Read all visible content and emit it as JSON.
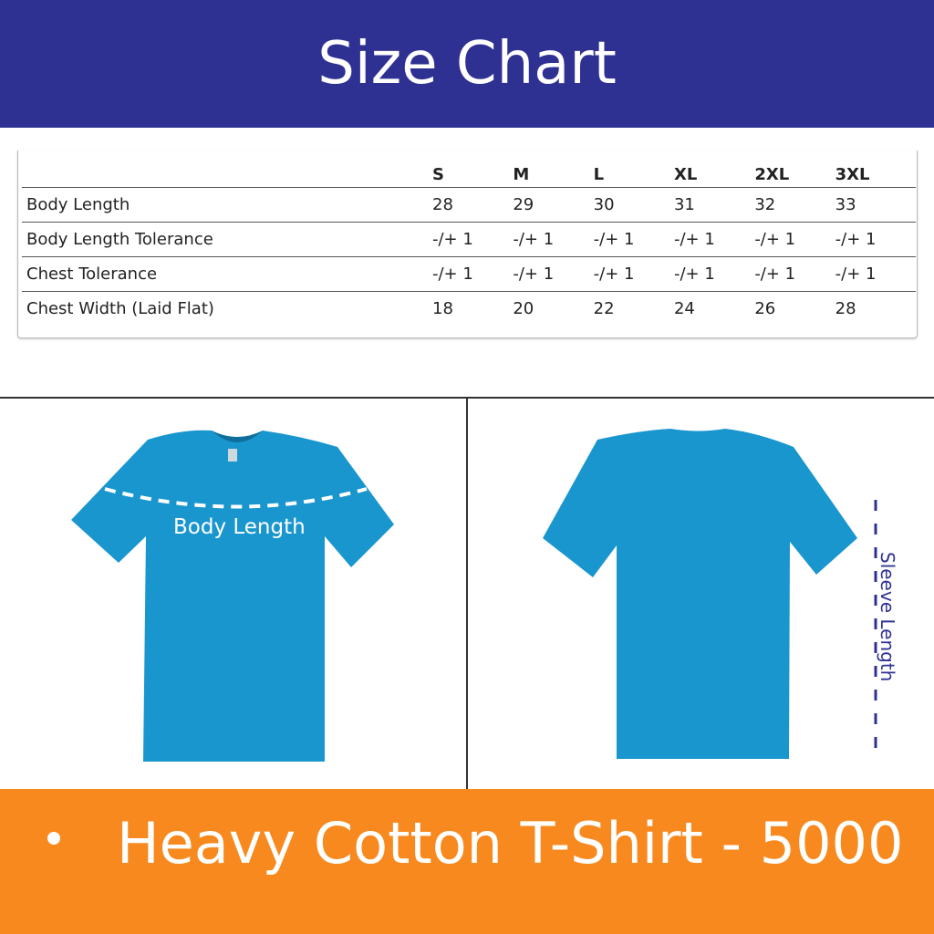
{
  "header": {
    "title": "Size Chart"
  },
  "colors": {
    "header": "#2e3192",
    "footer": "#f7891f",
    "shirt": "#1a96cf",
    "label": "#2e3192"
  },
  "table": {
    "columns": [
      "S",
      "M",
      "L",
      "XL",
      "2XL",
      "3XL"
    ],
    "rows": [
      {
        "label": "Body Length",
        "values": [
          "28",
          "29",
          "30",
          "31",
          "32",
          "33"
        ]
      },
      {
        "label": "Body Length Tolerance",
        "values": [
          "-/+ 1",
          "-/+ 1",
          "-/+ 1",
          "-/+ 1",
          "-/+ 1",
          "-/+ 1"
        ]
      },
      {
        "label": "Chest Tolerance",
        "values": [
          "-/+ 1",
          "-/+ 1",
          "-/+ 1",
          "-/+ 1",
          "-/+ 1",
          "-/+ 1"
        ]
      },
      {
        "label": "Chest Width (Laid Flat)",
        "values": [
          "18",
          "20",
          "22",
          "24",
          "26",
          "28"
        ]
      }
    ]
  },
  "images": {
    "front": {
      "icon": "tshirt-front-icon",
      "annotation": "Body Length"
    },
    "back": {
      "icon": "tshirt-back-icon",
      "annotation": "Sleeve Length"
    }
  },
  "footer": {
    "title": "Heavy Cotton T-Shirt - 5000"
  }
}
